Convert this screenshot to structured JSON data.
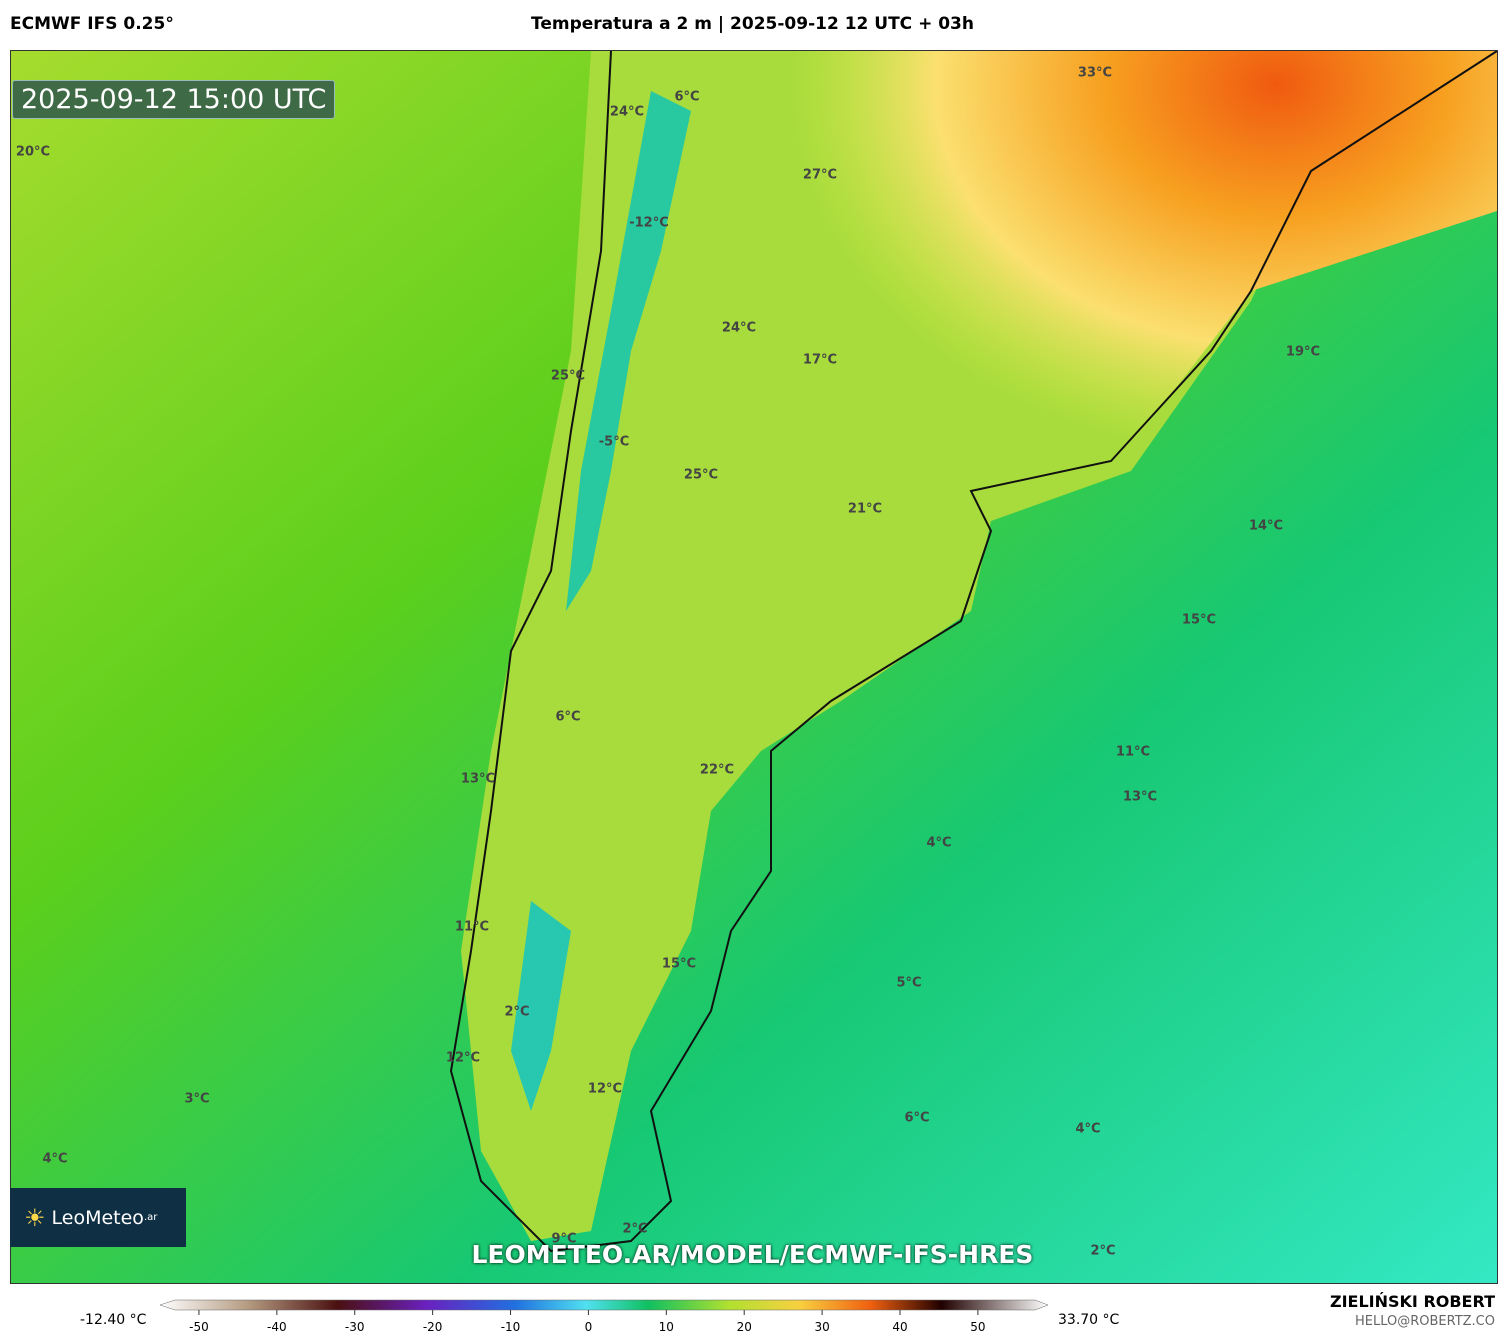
{
  "header": {
    "model": "ECMWF IFS 0.25°",
    "title": "Temperatura a 2 m | 2025-09-12 12 UTC + 03h"
  },
  "map": {
    "valid_time": "2025-09-12 15:00 UTC",
    "watermark": "LEOMETEO.AR/MODEL/ECMWF-IFS-HRES",
    "logo": {
      "name": "LeoMeteo",
      "suffix": ".ar"
    },
    "labels": [
      "33°C",
      "24°C",
      "6°C",
      "20°C",
      "27°C",
      "-12°C",
      "24°C",
      "17°C",
      "19°C",
      "25°C",
      "-5°C",
      "25°C",
      "21°C",
      "14°C",
      "15°C",
      "6°C",
      "22°C",
      "11°C",
      "13°C",
      "13°C",
      "4°C",
      "11°C",
      "15°C",
      "5°C",
      "2°C",
      "12°C",
      "12°C",
      "3°C",
      "6°C",
      "4°C",
      "4°C",
      "2°C",
      "9°C",
      "2°C"
    ]
  },
  "colorbar": {
    "min_label": "-12.40 °C",
    "max_label": "33.70 °C",
    "range": [
      -55,
      59
    ],
    "ticks": [
      -50,
      -40,
      -30,
      -20,
      -10,
      0,
      10,
      20,
      30,
      40,
      50
    ]
  },
  "footer": {
    "author": "ZIELIŃSKI ROBERT",
    "email": "HELLO@ROBERTZ.CO"
  }
}
